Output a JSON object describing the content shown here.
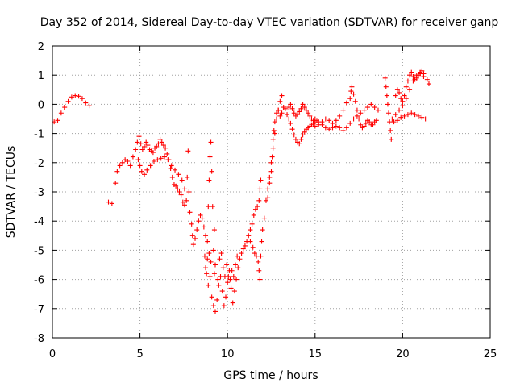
{
  "chart_data": {
    "type": "scatter",
    "title": "Day 352 of 2014, Sidereal Day-to-day VTEC variation (SDTVAR) for receiver ganp",
    "xlabel": "GPS time / hours",
    "ylabel": "SDTVAR / TECUs",
    "xlim": [
      0,
      25
    ],
    "ylim": [
      -8,
      2
    ],
    "xticks": [
      0,
      5,
      10,
      15,
      20,
      25
    ],
    "yticks": [
      -8,
      -7,
      -6,
      -5,
      -4,
      -3,
      -2,
      -1,
      0,
      1,
      2
    ],
    "grid": true,
    "marker": "plus",
    "color": "#ff0000",
    "series": [
      {
        "name": "SDTVAR",
        "points": [
          [
            0.1,
            -0.6
          ],
          [
            0.3,
            -0.55
          ],
          [
            0.5,
            -0.3
          ],
          [
            0.7,
            -0.1
          ],
          [
            0.9,
            0.1
          ],
          [
            1.1,
            0.25
          ],
          [
            1.3,
            0.3
          ],
          [
            1.5,
            0.28
          ],
          [
            1.7,
            0.2
          ],
          [
            1.9,
            0.05
          ],
          [
            2.1,
            -0.05
          ],
          [
            3.2,
            -3.35
          ],
          [
            3.4,
            -3.4
          ],
          [
            3.6,
            -2.7
          ],
          [
            3.7,
            -2.3
          ],
          [
            3.85,
            -2.1
          ],
          [
            4.0,
            -2.0
          ],
          [
            4.15,
            -1.9
          ],
          [
            4.3,
            -1.95
          ],
          [
            4.45,
            -2.1
          ],
          [
            4.6,
            -1.8
          ],
          [
            4.75,
            -1.55
          ],
          [
            4.85,
            -1.3
          ],
          [
            4.95,
            -1.1
          ],
          [
            5.05,
            -1.35
          ],
          [
            5.15,
            -1.55
          ],
          [
            5.25,
            -1.45
          ],
          [
            5.35,
            -1.3
          ],
          [
            5.45,
            -1.4
          ],
          [
            5.55,
            -1.55
          ],
          [
            5.65,
            -1.6
          ],
          [
            5.75,
            -1.65
          ],
          [
            5.85,
            -1.5
          ],
          [
            5.95,
            -1.45
          ],
          [
            6.05,
            -1.35
          ],
          [
            6.15,
            -1.2
          ],
          [
            6.25,
            -1.3
          ],
          [
            6.35,
            -1.4
          ],
          [
            6.45,
            -1.5
          ],
          [
            6.55,
            -1.7
          ],
          [
            6.65,
            -1.9
          ],
          [
            6.75,
            -2.2
          ],
          [
            6.85,
            -2.5
          ],
          [
            6.95,
            -2.75
          ],
          [
            7.05,
            -2.8
          ],
          [
            7.15,
            -2.9
          ],
          [
            7.25,
            -3.0
          ],
          [
            7.35,
            -3.1
          ],
          [
            7.45,
            -3.35
          ],
          [
            7.55,
            -3.45
          ],
          [
            7.65,
            -3.3
          ],
          [
            7.7,
            -2.5
          ],
          [
            7.75,
            -1.6
          ],
          [
            7.8,
            -3.0
          ],
          [
            4.9,
            -1.9
          ],
          [
            5.0,
            -2.1
          ],
          [
            5.1,
            -2.3
          ],
          [
            5.25,
            -2.4
          ],
          [
            5.4,
            -2.25
          ],
          [
            5.6,
            -2.1
          ],
          [
            5.8,
            -1.95
          ],
          [
            6.0,
            -1.9
          ],
          [
            6.2,
            -1.85
          ],
          [
            6.4,
            -1.8
          ],
          [
            6.6,
            -1.9
          ],
          [
            6.8,
            -2.1
          ],
          [
            7.0,
            -2.25
          ],
          [
            7.2,
            -2.4
          ],
          [
            7.4,
            -2.6
          ],
          [
            7.55,
            -2.9
          ],
          [
            7.85,
            -3.7
          ],
          [
            7.95,
            -4.1
          ],
          [
            8.0,
            -4.5
          ],
          [
            8.05,
            -4.8
          ],
          [
            8.15,
            -4.6
          ],
          [
            8.25,
            -4.3
          ],
          [
            8.35,
            -4.0
          ],
          [
            8.45,
            -3.8
          ],
          [
            8.55,
            -3.9
          ],
          [
            8.65,
            -4.2
          ],
          [
            8.75,
            -4.5
          ],
          [
            8.85,
            -4.7
          ],
          [
            8.9,
            -3.5
          ],
          [
            8.95,
            -2.6
          ],
          [
            9.0,
            -1.8
          ],
          [
            9.05,
            -1.3
          ],
          [
            9.1,
            -2.3
          ],
          [
            9.15,
            -3.5
          ],
          [
            9.2,
            -5.0
          ],
          [
            9.25,
            -4.3
          ],
          [
            9.3,
            -5.5
          ],
          [
            8.7,
            -5.2
          ],
          [
            8.8,
            -5.8
          ],
          [
            8.9,
            -6.2
          ],
          [
            9.0,
            -5.9
          ],
          [
            9.1,
            -6.6
          ],
          [
            9.2,
            -6.9
          ],
          [
            9.3,
            -7.1
          ],
          [
            9.4,
            -6.7
          ],
          [
            9.5,
            -6.2
          ],
          [
            9.6,
            -5.9
          ],
          [
            9.7,
            -6.4
          ],
          [
            9.8,
            -6.9
          ],
          [
            9.9,
            -6.6
          ],
          [
            10.0,
            -6.1
          ],
          [
            10.1,
            -5.7
          ],
          [
            10.2,
            -6.3
          ],
          [
            10.3,
            -6.8
          ],
          [
            10.4,
            -6.4
          ],
          [
            10.5,
            -6.0
          ],
          [
            10.6,
            -5.6
          ],
          [
            8.75,
            -5.6
          ],
          [
            8.85,
            -5.3
          ],
          [
            8.95,
            -5.1
          ],
          [
            9.05,
            -5.4
          ],
          [
            9.25,
            -5.8
          ],
          [
            9.45,
            -6.0
          ],
          [
            9.55,
            -5.3
          ],
          [
            9.65,
            -5.1
          ],
          [
            9.75,
            -5.6
          ],
          [
            9.85,
            -5.9
          ],
          [
            9.95,
            -5.5
          ],
          [
            10.05,
            -5.9
          ],
          [
            10.15,
            -6.0
          ],
          [
            10.25,
            -5.7
          ],
          [
            10.35,
            -5.9
          ],
          [
            10.45,
            -5.5
          ],
          [
            10.55,
            -5.2
          ],
          [
            10.7,
            -5.3
          ],
          [
            10.8,
            -5.1
          ],
          [
            10.9,
            -4.95
          ],
          [
            11.0,
            -4.85
          ],
          [
            11.1,
            -4.7
          ],
          [
            11.2,
            -4.5
          ],
          [
            11.3,
            -4.3
          ],
          [
            11.4,
            -4.1
          ],
          [
            11.5,
            -3.8
          ],
          [
            11.6,
            -3.6
          ],
          [
            11.7,
            -3.5
          ],
          [
            11.8,
            -3.3
          ],
          [
            11.85,
            -2.9
          ],
          [
            11.9,
            -2.6
          ],
          [
            11.3,
            -4.7
          ],
          [
            11.45,
            -4.9
          ],
          [
            11.55,
            -5.1
          ],
          [
            11.65,
            -5.2
          ],
          [
            11.75,
            -5.4
          ],
          [
            11.8,
            -5.7
          ],
          [
            11.85,
            -6.0
          ],
          [
            11.9,
            -5.2
          ],
          [
            11.95,
            -4.7
          ],
          [
            12.0,
            -4.3
          ],
          [
            12.1,
            -3.9
          ],
          [
            12.2,
            -3.3
          ],
          [
            12.3,
            -2.9
          ],
          [
            12.4,
            -2.5
          ],
          [
            12.5,
            -2.0
          ],
          [
            12.6,
            -1.5
          ],
          [
            12.7,
            -1.0
          ],
          [
            12.8,
            -0.5
          ],
          [
            12.9,
            -0.2
          ],
          [
            13.0,
            0.1
          ],
          [
            13.1,
            0.3
          ],
          [
            12.3,
            -3.2
          ],
          [
            12.4,
            -2.7
          ],
          [
            12.5,
            -2.3
          ],
          [
            12.55,
            -1.8
          ],
          [
            12.6,
            -1.2
          ],
          [
            12.65,
            -0.9
          ],
          [
            12.7,
            -0.6
          ],
          [
            12.8,
            -0.3
          ],
          [
            12.9,
            -0.2
          ],
          [
            13.0,
            -0.4
          ],
          [
            13.1,
            -0.3
          ],
          [
            13.2,
            -0.1
          ],
          [
            13.3,
            -0.15
          ],
          [
            13.4,
            -0.35
          ],
          [
            13.5,
            -0.5
          ],
          [
            13.6,
            -0.65
          ],
          [
            13.7,
            -0.85
          ],
          [
            13.8,
            -1.05
          ],
          [
            13.9,
            -1.2
          ],
          [
            14.0,
            -1.3
          ],
          [
            14.1,
            -1.35
          ],
          [
            14.2,
            -1.2
          ],
          [
            14.3,
            -1.05
          ],
          [
            14.4,
            -0.95
          ],
          [
            14.5,
            -0.85
          ],
          [
            14.6,
            -0.8
          ],
          [
            14.7,
            -0.75
          ],
          [
            14.8,
            -0.7
          ],
          [
            14.9,
            -0.65
          ],
          [
            15.0,
            -0.6
          ],
          [
            15.1,
            -0.55
          ],
          [
            13.5,
            -0.1
          ],
          [
            13.6,
            0.0
          ],
          [
            13.7,
            -0.15
          ],
          [
            13.8,
            -0.3
          ],
          [
            13.9,
            -0.4
          ],
          [
            14.0,
            -0.35
          ],
          [
            14.1,
            -0.25
          ],
          [
            14.2,
            -0.15
          ],
          [
            14.3,
            0.0
          ],
          [
            14.4,
            -0.1
          ],
          [
            14.5,
            -0.2
          ],
          [
            14.6,
            -0.3
          ],
          [
            14.7,
            -0.4
          ],
          [
            14.8,
            -0.5
          ],
          [
            14.9,
            -0.55
          ],
          [
            15.0,
            -0.5
          ],
          [
            15.2,
            -0.6
          ],
          [
            15.4,
            -0.7
          ],
          [
            15.6,
            -0.8
          ],
          [
            15.8,
            -0.85
          ],
          [
            16.0,
            -0.8
          ],
          [
            16.2,
            -0.75
          ],
          [
            16.4,
            -0.8
          ],
          [
            16.6,
            -0.9
          ],
          [
            16.8,
            -0.8
          ],
          [
            17.0,
            -0.65
          ],
          [
            17.2,
            -0.5
          ],
          [
            17.4,
            -0.4
          ],
          [
            17.6,
            -0.3
          ],
          [
            17.8,
            -0.2
          ],
          [
            18.0,
            -0.1
          ],
          [
            18.2,
            0.0
          ],
          [
            18.4,
            -0.1
          ],
          [
            18.6,
            -0.2
          ],
          [
            15.0,
            -0.75
          ],
          [
            15.2,
            -0.7
          ],
          [
            15.4,
            -0.6
          ],
          [
            15.6,
            -0.5
          ],
          [
            15.8,
            -0.55
          ],
          [
            16.0,
            -0.65
          ],
          [
            16.2,
            -0.55
          ],
          [
            16.4,
            -0.4
          ],
          [
            16.6,
            -0.2
          ],
          [
            16.8,
            0.05
          ],
          [
            17.0,
            0.2
          ],
          [
            17.05,
            0.45
          ],
          [
            17.1,
            0.6
          ],
          [
            17.2,
            0.35
          ],
          [
            17.3,
            0.1
          ],
          [
            17.4,
            -0.2
          ],
          [
            17.5,
            -0.5
          ],
          [
            17.6,
            -0.7
          ],
          [
            17.7,
            -0.8
          ],
          [
            17.8,
            -0.75
          ],
          [
            17.9,
            -0.65
          ],
          [
            18.0,
            -0.55
          ],
          [
            18.1,
            -0.6
          ],
          [
            18.2,
            -0.7
          ],
          [
            18.3,
            -0.7
          ],
          [
            18.4,
            -0.6
          ],
          [
            18.5,
            -0.55
          ],
          [
            19.0,
            0.9
          ],
          [
            19.05,
            0.6
          ],
          [
            19.1,
            0.3
          ],
          [
            19.15,
            0.0
          ],
          [
            19.2,
            -0.3
          ],
          [
            19.25,
            -0.6
          ],
          [
            19.3,
            -0.9
          ],
          [
            19.35,
            -1.2
          ],
          [
            19.4,
            -0.5
          ],
          [
            19.6,
            -0.35
          ],
          [
            19.8,
            -0.2
          ],
          [
            20.0,
            -0.05
          ],
          [
            20.2,
            0.2
          ],
          [
            20.4,
            0.5
          ],
          [
            20.6,
            0.8
          ],
          [
            20.8,
            1.0
          ],
          [
            21.0,
            1.05
          ],
          [
            21.2,
            0.95
          ],
          [
            21.4,
            0.85
          ],
          [
            21.5,
            0.7
          ],
          [
            19.5,
            -0.6
          ],
          [
            19.7,
            -0.55
          ],
          [
            19.9,
            -0.45
          ],
          [
            20.1,
            -0.4
          ],
          [
            20.3,
            -0.35
          ],
          [
            20.5,
            -0.3
          ],
          [
            20.7,
            -0.35
          ],
          [
            20.9,
            -0.4
          ],
          [
            21.1,
            -0.45
          ],
          [
            21.3,
            -0.5
          ],
          [
            19.6,
            0.3
          ],
          [
            19.7,
            0.5
          ],
          [
            19.8,
            0.4
          ],
          [
            19.9,
            0.2
          ],
          [
            20.0,
            0.1
          ],
          [
            20.1,
            0.3
          ],
          [
            20.2,
            0.6
          ],
          [
            20.3,
            0.8
          ],
          [
            20.4,
            1.0
          ],
          [
            20.5,
            1.1
          ],
          [
            20.6,
            0.95
          ],
          [
            20.7,
            0.85
          ],
          [
            20.8,
            0.9
          ],
          [
            20.9,
            1.0
          ],
          [
            21.0,
            1.1
          ],
          [
            21.1,
            1.15
          ],
          [
            21.2,
            1.05
          ]
        ]
      }
    ]
  }
}
